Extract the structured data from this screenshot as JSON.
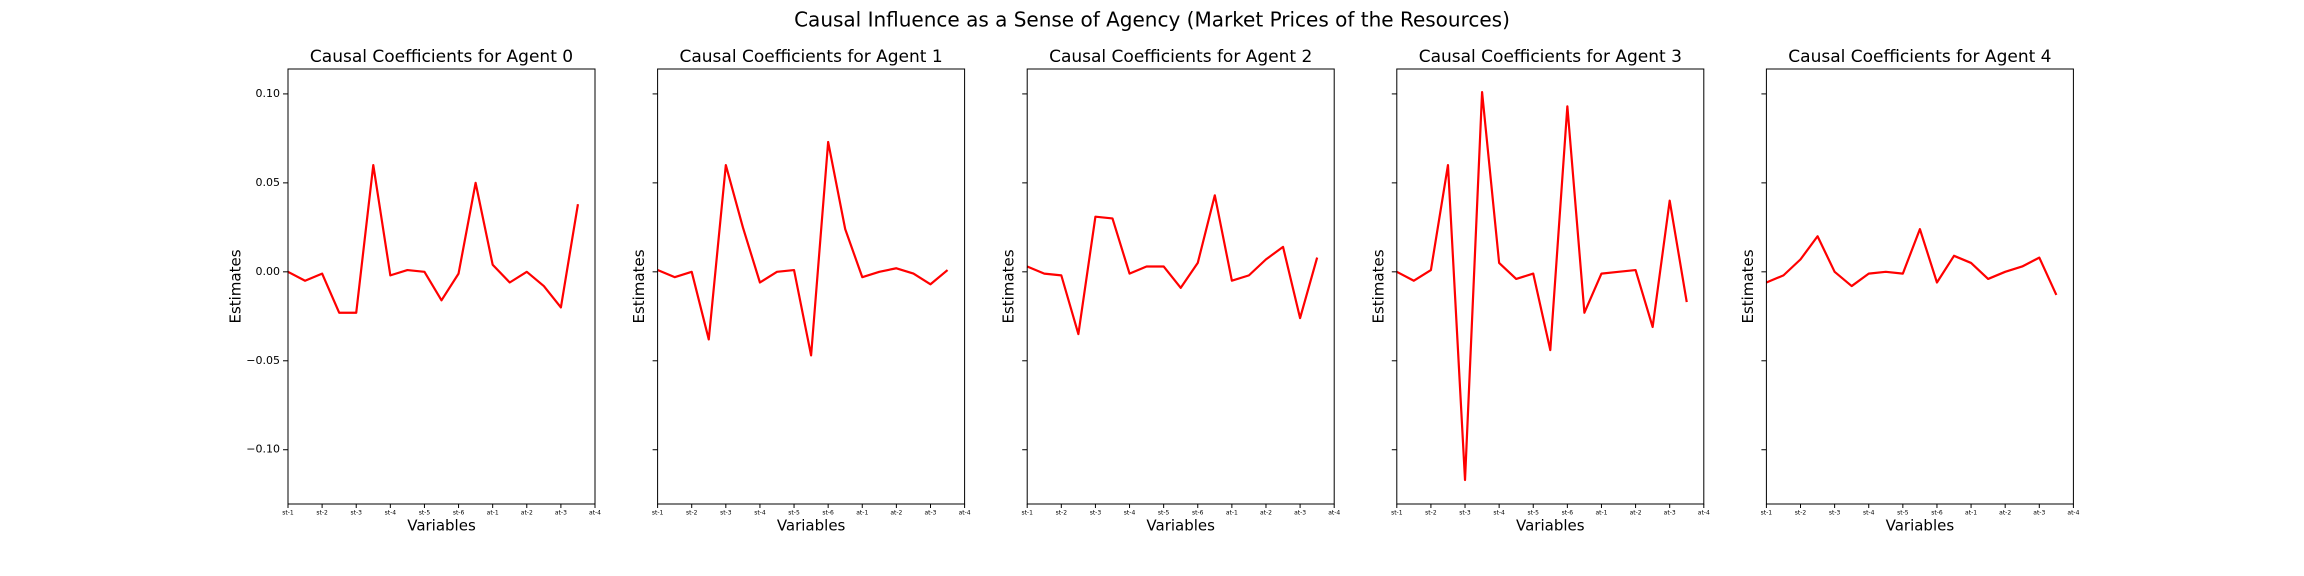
{
  "title": "Causal Influence as a Sense of Agency (Market Prices of the Resources)",
  "chart_data": [
    {
      "type": "line",
      "title": "Causal Coefficients for Agent 0",
      "xlabel": "Variables",
      "ylabel": "Estimates",
      "color": "#ff0000",
      "x": [
        0,
        1,
        2,
        3,
        4,
        5,
        6,
        7,
        8,
        9,
        10,
        11,
        12,
        13,
        14,
        15,
        16,
        17
      ],
      "values": [
        0,
        -0.005,
        -0.001,
        -0.023,
        -0.023,
        0.06,
        -0.002,
        0.001,
        0,
        -0.016,
        -0.001,
        0.05,
        0.004,
        -0.006,
        0,
        -0.008,
        -0.02,
        0.038
      ],
      "xlim": [
        0,
        18
      ],
      "ylim": [
        -0.1305,
        0.114
      ],
      "xticks": [
        {
          "value": 0,
          "label": "st-1"
        },
        {
          "value": 2,
          "label": "st-2"
        },
        {
          "value": 4,
          "label": "st-3"
        },
        {
          "value": 6,
          "label": "st-4"
        },
        {
          "value": 8,
          "label": "st-5"
        },
        {
          "value": 10,
          "label": "st-6"
        },
        {
          "value": 12,
          "label": "at-1"
        },
        {
          "value": 14,
          "label": "at-2"
        },
        {
          "value": 16,
          "label": "at-3"
        },
        {
          "value": 18,
          "label": "at-4"
        }
      ],
      "yticks": [
        {
          "value": 0.1,
          "label": "0.10"
        },
        {
          "value": 0.05,
          "label": "0.05"
        },
        {
          "value": 0,
          "label": "0.00"
        },
        {
          "value": -0.05,
          "label": "−0.05"
        },
        {
          "value": -0.1,
          "label": "−0.10"
        }
      ]
    },
    {
      "type": "line",
      "title": "Causal Coefficients for Agent 1",
      "xlabel": "Variables",
      "ylabel": "Estimates",
      "color": "#ff0000",
      "x": [
        0,
        1,
        2,
        3,
        4,
        5,
        6,
        7,
        8,
        9,
        10,
        11,
        12,
        13,
        14,
        15,
        16,
        17
      ],
      "values": [
        0.001,
        -0.003,
        0,
        -0.038,
        0.06,
        0.025,
        -0.006,
        0,
        0.001,
        -0.047,
        0.073,
        0.024,
        -0.003,
        0,
        0.002,
        -0.001,
        -0.007,
        0.001
      ],
      "xlim": [
        0,
        18
      ],
      "ylim": [
        -0.1305,
        0.114
      ],
      "xticks": [
        {
          "value": 0,
          "label": "st-1"
        },
        {
          "value": 2,
          "label": "st-2"
        },
        {
          "value": 4,
          "label": "st-3"
        },
        {
          "value": 6,
          "label": "st-4"
        },
        {
          "value": 8,
          "label": "st-5"
        },
        {
          "value": 10,
          "label": "st-6"
        },
        {
          "value": 12,
          "label": "at-1"
        },
        {
          "value": 14,
          "label": "at-2"
        },
        {
          "value": 16,
          "label": "at-3"
        },
        {
          "value": 18,
          "label": "at-4"
        }
      ],
      "yticks": [
        0.1,
        0.05,
        0,
        -0.05,
        -0.1
      ]
    },
    {
      "type": "line",
      "title": "Causal Coefficients for Agent 2",
      "xlabel": "Variables",
      "ylabel": "Estimates",
      "color": "#ff0000",
      "x": [
        0,
        1,
        2,
        3,
        4,
        5,
        6,
        7,
        8,
        9,
        10,
        11,
        12,
        13,
        14,
        15,
        16,
        17
      ],
      "values": [
        0.003,
        -0.001,
        -0.002,
        -0.035,
        0.031,
        0.03,
        -0.001,
        0.003,
        0.003,
        -0.009,
        0.005,
        0.043,
        -0.005,
        -0.002,
        0.007,
        0.014,
        -0.026,
        0.008
      ],
      "xlim": [
        0,
        18
      ],
      "ylim": [
        -0.1305,
        0.114
      ],
      "xticks": [
        {
          "value": 0,
          "label": "st-1"
        },
        {
          "value": 2,
          "label": "st-2"
        },
        {
          "value": 4,
          "label": "st-3"
        },
        {
          "value": 6,
          "label": "st-4"
        },
        {
          "value": 8,
          "label": "st-5"
        },
        {
          "value": 10,
          "label": "st-6"
        },
        {
          "value": 12,
          "label": "at-1"
        },
        {
          "value": 14,
          "label": "at-2"
        },
        {
          "value": 16,
          "label": "at-3"
        },
        {
          "value": 18,
          "label": "at-4"
        }
      ],
      "yticks": [
        0.1,
        0.05,
        0,
        -0.05,
        -0.1
      ]
    },
    {
      "type": "line",
      "title": "Causal Coefficients for Agent 3",
      "xlabel": "Variables",
      "ylabel": "Estimates",
      "color": "#ff0000",
      "x": [
        0,
        1,
        2,
        3,
        4,
        5,
        6,
        7,
        8,
        9,
        10,
        11,
        12,
        13,
        14,
        15,
        16,
        17
      ],
      "values": [
        0,
        -0.005,
        0.001,
        0.06,
        -0.117,
        0.101,
        0.005,
        -0.004,
        -0.001,
        -0.044,
        0.093,
        -0.023,
        -0.001,
        0,
        0.001,
        -0.031,
        0.04,
        -0.017
      ],
      "xlim": [
        0,
        18
      ],
      "ylim": [
        -0.1305,
        0.114
      ],
      "xticks": [
        {
          "value": 0,
          "label": "st-1"
        },
        {
          "value": 2,
          "label": "st-2"
        },
        {
          "value": 4,
          "label": "st-3"
        },
        {
          "value": 6,
          "label": "st-4"
        },
        {
          "value": 8,
          "label": "st-5"
        },
        {
          "value": 10,
          "label": "st-6"
        },
        {
          "value": 12,
          "label": "at-1"
        },
        {
          "value": 14,
          "label": "at-2"
        },
        {
          "value": 16,
          "label": "at-3"
        },
        {
          "value": 18,
          "label": "at-4"
        }
      ],
      "yticks": [
        0.1,
        0.05,
        0,
        -0.05,
        -0.1
      ]
    },
    {
      "type": "line",
      "title": "Causal Coefficients for Agent 4",
      "xlabel": "Variables",
      "ylabel": "Estimates",
      "color": "#ff0000",
      "x": [
        0,
        1,
        2,
        3,
        4,
        5,
        6,
        7,
        8,
        9,
        10,
        11,
        12,
        13,
        14,
        15,
        16,
        17
      ],
      "values": [
        -0.006,
        -0.002,
        0.007,
        0.02,
        0,
        -0.008,
        -0.001,
        0,
        -0.001,
        0.024,
        -0.006,
        0.009,
        0.005,
        -0.004,
        0,
        0.003,
        0.008,
        -0.013
      ],
      "xlim": [
        0,
        18
      ],
      "ylim": [
        -0.1305,
        0.114
      ],
      "xticks": [
        {
          "value": 0,
          "label": "st-1"
        },
        {
          "value": 2,
          "label": "st-2"
        },
        {
          "value": 4,
          "label": "st-3"
        },
        {
          "value": 6,
          "label": "st-4"
        },
        {
          "value": 8,
          "label": "st-5"
        },
        {
          "value": 10,
          "label": "st-6"
        },
        {
          "value": 12,
          "label": "at-1"
        },
        {
          "value": 14,
          "label": "at-2"
        },
        {
          "value": 16,
          "label": "at-3"
        },
        {
          "value": 18,
          "label": "at-4"
        }
      ],
      "yticks": [
        0.1,
        0.05,
        0,
        -0.05,
        -0.1
      ]
    }
  ]
}
